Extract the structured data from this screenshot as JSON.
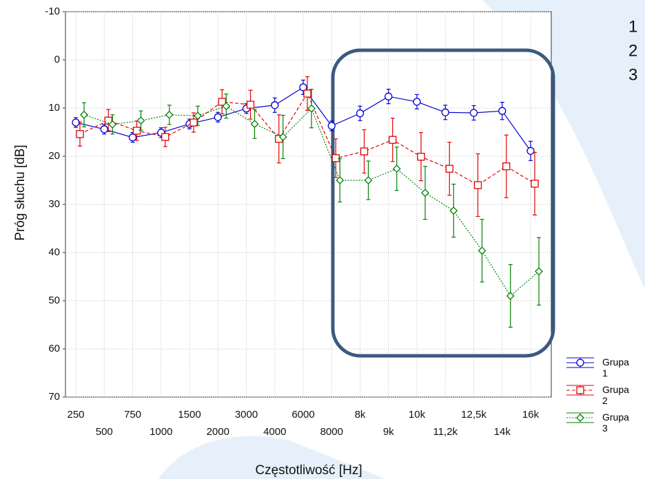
{
  "chart_data": {
    "type": "line",
    "ylabel": "Próg słuchu [dB]",
    "xlabel": "Częstotliwość [Hz]",
    "categories": [
      "250",
      "500",
      "750",
      "1000",
      "1500",
      "2000",
      "3000",
      "4000",
      "6000",
      "8000",
      "8k",
      "9k",
      "10k",
      "11,2k",
      "12,5k",
      "14k",
      "16k"
    ],
    "ylim": [
      -10,
      70
    ],
    "yticks": [
      -10,
      0,
      10,
      20,
      30,
      40,
      50,
      60,
      70
    ],
    "inverted_y": true,
    "grid": true,
    "legend": "bottom-right",
    "annotations": [
      "1",
      "2",
      "3"
    ],
    "series": [
      {
        "name": "Grupa 1",
        "color": "#0000cc",
        "marker": "circle",
        "values": [
          13.0,
          14.4,
          16.1,
          15.1,
          13.3,
          11.9,
          10.1,
          9.4,
          5.7,
          13.7,
          11.1,
          7.6,
          8.7,
          10.9,
          11.0,
          10.6,
          18.9
        ],
        "errors": [
          1,
          1,
          1,
          1,
          1,
          1,
          1,
          1.5,
          1.5,
          1,
          1.5,
          1.5,
          1.5,
          1.5,
          1.5,
          1.8,
          2
        ]
      },
      {
        "name": "Grupa 2",
        "color": "#e00000",
        "marker": "square",
        "values": [
          15.4,
          12.6,
          14.7,
          16.0,
          13.0,
          8.7,
          9.3,
          16.4,
          7.0,
          20.4,
          19.0,
          16.6,
          20.1,
          22.6,
          26.0,
          22.1,
          25.7
        ],
        "errors": [
          2.5,
          2.3,
          2,
          2,
          2,
          2.5,
          3,
          5,
          3.5,
          4,
          4.5,
          4.5,
          5,
          5.5,
          6.5,
          6.5,
          6.5
        ]
      },
      {
        "name": "Grupa 3",
        "color": "#008000",
        "marker": "diamond",
        "values": [
          11.4,
          13.4,
          12.6,
          11.4,
          11.6,
          9.6,
          13.3,
          16.0,
          10.1,
          25.0,
          25.0,
          22.6,
          27.6,
          31.3,
          39.6,
          49.0,
          43.9
        ],
        "errors": [
          2.5,
          2,
          2,
          2,
          2,
          2.5,
          3,
          4.5,
          4,
          4.5,
          4,
          4.5,
          5.5,
          5.5,
          6.5,
          6.5,
          7
        ]
      }
    ]
  }
}
